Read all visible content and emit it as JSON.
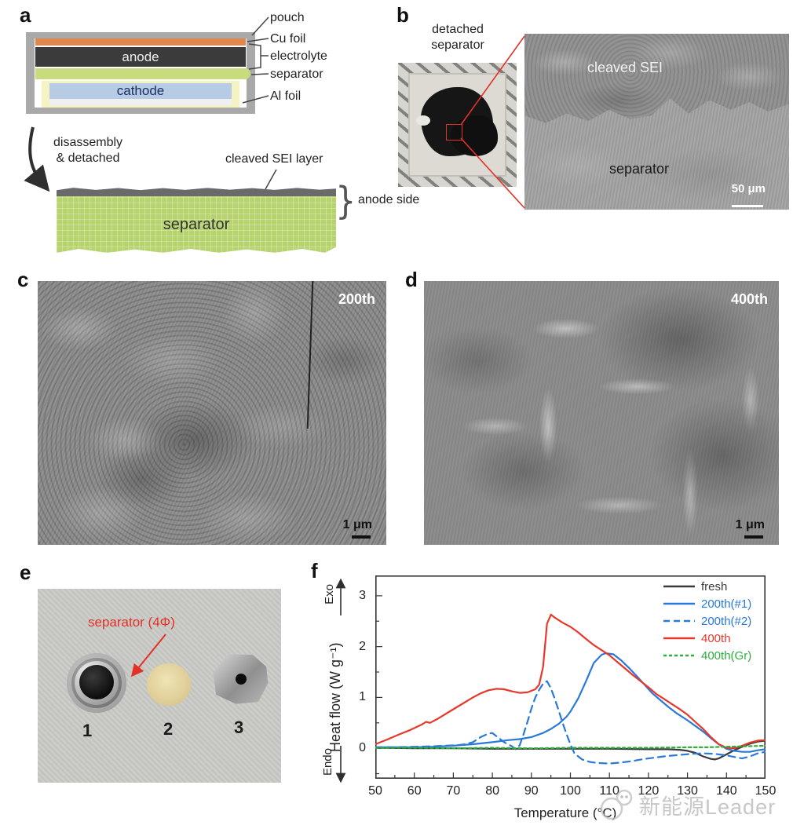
{
  "colors": {
    "red": "#e8382c",
    "blue": "#2979d9",
    "green": "#2fae3c",
    "dark": "#3a3a3a",
    "accent_red": "#e23227"
  },
  "panel_a": {
    "label": "a",
    "anode": "anode",
    "cathode": "cathode",
    "side_labels": [
      "pouch",
      "Cu foil",
      "electrolyte",
      "separator",
      "Al foil"
    ],
    "arrow_line1": "disassembly",
    "arrow_line2": "& detached",
    "cleaved": "cleaved SEI layer",
    "separator": "separator",
    "anode_side": "anode side"
  },
  "panel_b": {
    "label": "b",
    "caption_line1": "detached",
    "caption_line2": "separator",
    "sem_top": "cleaved SEI",
    "sem_bottom": "separator",
    "scalebar": "50 μm"
  },
  "panel_c": {
    "label": "c",
    "tag": "200th",
    "scalebar": "1 μm"
  },
  "panel_d": {
    "label": "d",
    "tag": "400th",
    "scalebar": "1 μm"
  },
  "panel_e": {
    "label": "e",
    "annotation": "separator (4Φ)",
    "items": [
      "1",
      "2",
      "3"
    ]
  },
  "panel_f": {
    "label": "f"
  },
  "watermark": {
    "text": "新能源Leader"
  },
  "chart_data": {
    "type": "line",
    "xlabel": "Temperature (°C)",
    "ylabel": "Heat flow (W g⁻¹)",
    "annotations": {
      "exo": "Exo",
      "endo": "Endo"
    },
    "xlim": [
      50,
      150
    ],
    "ylim": [
      -0.6,
      3.4
    ],
    "xticks": [
      50,
      60,
      70,
      80,
      90,
      100,
      110,
      120,
      130,
      140,
      150
    ],
    "yticks": [
      0,
      1,
      2,
      3
    ],
    "grid": false,
    "legend_position": "top-right",
    "series": [
      {
        "name": "fresh",
        "color": "#3a3a3a",
        "style": "solid",
        "points": [
          [
            50,
            0.01
          ],
          [
            60,
            0.0
          ],
          [
            70,
            0.0
          ],
          [
            80,
            -0.01
          ],
          [
            90,
            -0.01
          ],
          [
            100,
            -0.01
          ],
          [
            110,
            -0.01
          ],
          [
            120,
            -0.02
          ],
          [
            125,
            -0.02
          ],
          [
            128,
            -0.03
          ],
          [
            130,
            -0.05
          ],
          [
            132,
            -0.09
          ],
          [
            134,
            -0.16
          ],
          [
            136,
            -0.21
          ],
          [
            137,
            -0.22
          ],
          [
            138,
            -0.2
          ],
          [
            140,
            -0.12
          ],
          [
            142,
            -0.04
          ],
          [
            144,
            0.03
          ],
          [
            146,
            0.09
          ],
          [
            148,
            0.13
          ],
          [
            150,
            0.15
          ]
        ]
      },
      {
        "name": "200th(#1)",
        "color": "#2979d9",
        "style": "solid",
        "points": [
          [
            50,
            0.02
          ],
          [
            55,
            0.02
          ],
          [
            60,
            0.02
          ],
          [
            65,
            0.03
          ],
          [
            70,
            0.05
          ],
          [
            75,
            0.08
          ],
          [
            80,
            0.12
          ],
          [
            84,
            0.16
          ],
          [
            87,
            0.18
          ],
          [
            90,
            0.22
          ],
          [
            93,
            0.3
          ],
          [
            95,
            0.38
          ],
          [
            97,
            0.48
          ],
          [
            99,
            0.62
          ],
          [
            100,
            0.72
          ],
          [
            102,
            0.98
          ],
          [
            104,
            1.32
          ],
          [
            106,
            1.68
          ],
          [
            108,
            1.84
          ],
          [
            109,
            1.87
          ],
          [
            111,
            1.85
          ],
          [
            113,
            1.73
          ],
          [
            115,
            1.58
          ],
          [
            117,
            1.42
          ],
          [
            119,
            1.25
          ],
          [
            121,
            1.08
          ],
          [
            123,
            0.95
          ],
          [
            125,
            0.82
          ],
          [
            127,
            0.7
          ],
          [
            130,
            0.55
          ],
          [
            132,
            0.44
          ],
          [
            134,
            0.33
          ],
          [
            136,
            0.2
          ],
          [
            138,
            0.08
          ],
          [
            140,
            -0.01
          ],
          [
            142,
            -0.05
          ],
          [
            144,
            -0.07
          ],
          [
            146,
            -0.07
          ],
          [
            148,
            -0.04
          ],
          [
            150,
            -0.02
          ]
        ]
      },
      {
        "name": "200th(#2)",
        "color": "#2979d9",
        "style": "dash",
        "points": [
          [
            50,
            0.02
          ],
          [
            55,
            0.02
          ],
          [
            60,
            0.03
          ],
          [
            65,
            0.04
          ],
          [
            68,
            0.05
          ],
          [
            71,
            0.06
          ],
          [
            73,
            0.08
          ],
          [
            75,
            0.12
          ],
          [
            77,
            0.22
          ],
          [
            79,
            0.29
          ],
          [
            80,
            0.3
          ],
          [
            81,
            0.24
          ],
          [
            83,
            0.12
          ],
          [
            85,
            0.04
          ],
          [
            86,
            -0.02
          ],
          [
            87,
            0.06
          ],
          [
            88,
            0.28
          ],
          [
            89,
            0.52
          ],
          [
            90,
            0.78
          ],
          [
            91,
            1.0
          ],
          [
            92,
            1.15
          ],
          [
            93,
            1.27
          ],
          [
            94,
            1.32
          ],
          [
            95,
            1.18
          ],
          [
            96,
            0.97
          ],
          [
            97,
            0.74
          ],
          [
            98,
            0.5
          ],
          [
            99,
            0.28
          ],
          [
            100,
            0.08
          ],
          [
            101,
            -0.1
          ],
          [
            103,
            -0.22
          ],
          [
            105,
            -0.27
          ],
          [
            107,
            -0.29
          ],
          [
            110,
            -0.3
          ],
          [
            113,
            -0.28
          ],
          [
            116,
            -0.25
          ],
          [
            119,
            -0.21
          ],
          [
            122,
            -0.18
          ],
          [
            125,
            -0.15
          ],
          [
            128,
            -0.13
          ],
          [
            131,
            -0.11
          ],
          [
            134,
            -0.1
          ],
          [
            137,
            -0.11
          ],
          [
            140,
            -0.14
          ],
          [
            142,
            -0.17
          ],
          [
            144,
            -0.2
          ],
          [
            146,
            -0.16
          ],
          [
            148,
            -0.1
          ],
          [
            150,
            -0.07
          ]
        ]
      },
      {
        "name": "400th",
        "color": "#e8382c",
        "style": "solid",
        "points": [
          [
            50,
            0.08
          ],
          [
            53,
            0.17
          ],
          [
            56,
            0.27
          ],
          [
            59,
            0.36
          ],
          [
            62,
            0.47
          ],
          [
            63,
            0.52
          ],
          [
            64,
            0.5
          ],
          [
            66,
            0.58
          ],
          [
            69,
            0.72
          ],
          [
            72,
            0.86
          ],
          [
            75,
            1.0
          ],
          [
            77,
            1.08
          ],
          [
            79,
            1.14
          ],
          [
            81,
            1.17
          ],
          [
            83,
            1.16
          ],
          [
            85,
            1.12
          ],
          [
            87,
            1.09
          ],
          [
            89,
            1.1
          ],
          [
            91,
            1.16
          ],
          [
            92,
            1.25
          ],
          [
            93,
            1.6
          ],
          [
            94,
            2.45
          ],
          [
            95,
            2.63
          ],
          [
            96,
            2.57
          ],
          [
            98,
            2.47
          ],
          [
            100,
            2.39
          ],
          [
            102,
            2.28
          ],
          [
            104,
            2.15
          ],
          [
            106,
            2.03
          ],
          [
            108,
            1.93
          ],
          [
            110,
            1.83
          ],
          [
            112,
            1.7
          ],
          [
            114,
            1.57
          ],
          [
            116,
            1.44
          ],
          [
            118,
            1.32
          ],
          [
            120,
            1.2
          ],
          [
            122,
            1.07
          ],
          [
            124,
            0.97
          ],
          [
            126,
            0.87
          ],
          [
            128,
            0.77
          ],
          [
            130,
            0.66
          ],
          [
            132,
            0.52
          ],
          [
            134,
            0.38
          ],
          [
            136,
            0.22
          ],
          [
            138,
            0.08
          ],
          [
            140,
            0.01
          ],
          [
            142,
            0.0
          ],
          [
            144,
            0.05
          ],
          [
            146,
            0.11
          ],
          [
            148,
            0.15
          ],
          [
            150,
            0.16
          ]
        ]
      },
      {
        "name": "400th(Gr)",
        "color": "#2fae3c",
        "style": "dot",
        "points": [
          [
            50,
            0.01
          ],
          [
            60,
            0.01
          ],
          [
            70,
            0.0
          ],
          [
            80,
            0.01
          ],
          [
            90,
            0.0
          ],
          [
            100,
            0.01
          ],
          [
            110,
            0.01
          ],
          [
            120,
            0.01
          ],
          [
            130,
            0.02
          ],
          [
            135,
            0.02
          ],
          [
            140,
            0.03
          ],
          [
            145,
            0.04
          ],
          [
            150,
            0.05
          ]
        ]
      }
    ]
  }
}
